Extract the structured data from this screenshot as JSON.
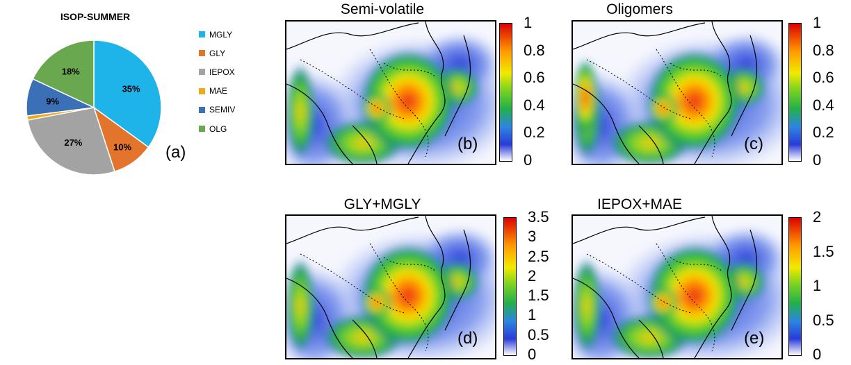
{
  "chart_data": [
    {
      "type": "pie",
      "title": "ISOP-SUMMER",
      "panel_label": "(a)",
      "slices": [
        {
          "name": "MGLY",
          "value": 35,
          "label": "35%",
          "color": "#1eb4ea"
        },
        {
          "name": "GLY",
          "value": 10,
          "label": "10%",
          "color": "#e2742c"
        },
        {
          "name": "IEPOX",
          "value": 27,
          "label": "27%",
          "color": "#a3a3a3"
        },
        {
          "name": "MAE",
          "value": 1,
          "label": "1%",
          "color": "#f0a91a"
        },
        {
          "name": "SEMIV",
          "value": 9,
          "label": "9%",
          "color": "#3b6fb6"
        },
        {
          "name": "OLG",
          "value": 18,
          "label": "18%",
          "color": "#6aa84f"
        }
      ],
      "legend_placement": "right"
    },
    {
      "type": "heatmap",
      "title": "Semi-volatile",
      "panel_label": "(b)",
      "colorbar_ticks": [
        "1",
        "0.8",
        "0.6",
        "0.4",
        "0.2",
        "0"
      ],
      "colorbar_range": [
        0,
        1
      ]
    },
    {
      "type": "heatmap",
      "title": "Oligomers",
      "panel_label": "(c)",
      "colorbar_ticks": [
        "1",
        "0.8",
        "0.6",
        "0.4",
        "0.2",
        "0"
      ],
      "colorbar_range": [
        0,
        1
      ]
    },
    {
      "type": "heatmap",
      "title": "GLY+MGLY",
      "panel_label": "(d)",
      "colorbar_ticks": [
        "3.5",
        "3",
        "2.5",
        "2",
        "1.5",
        "1",
        "0.5",
        "0"
      ],
      "colorbar_range": [
        0,
        3.5
      ]
    },
    {
      "type": "heatmap",
      "title": "IEPOX+MAE",
      "panel_label": "(e)",
      "colorbar_ticks": [
        "2",
        "1.5",
        "1",
        "0.5",
        "0"
      ],
      "colorbar_range": [
        0,
        2
      ]
    }
  ],
  "colormap": [
    "#ffffff",
    "#2233cc",
    "#22bb22",
    "#ffee00",
    "#ff8800",
    "#dd0000"
  ]
}
